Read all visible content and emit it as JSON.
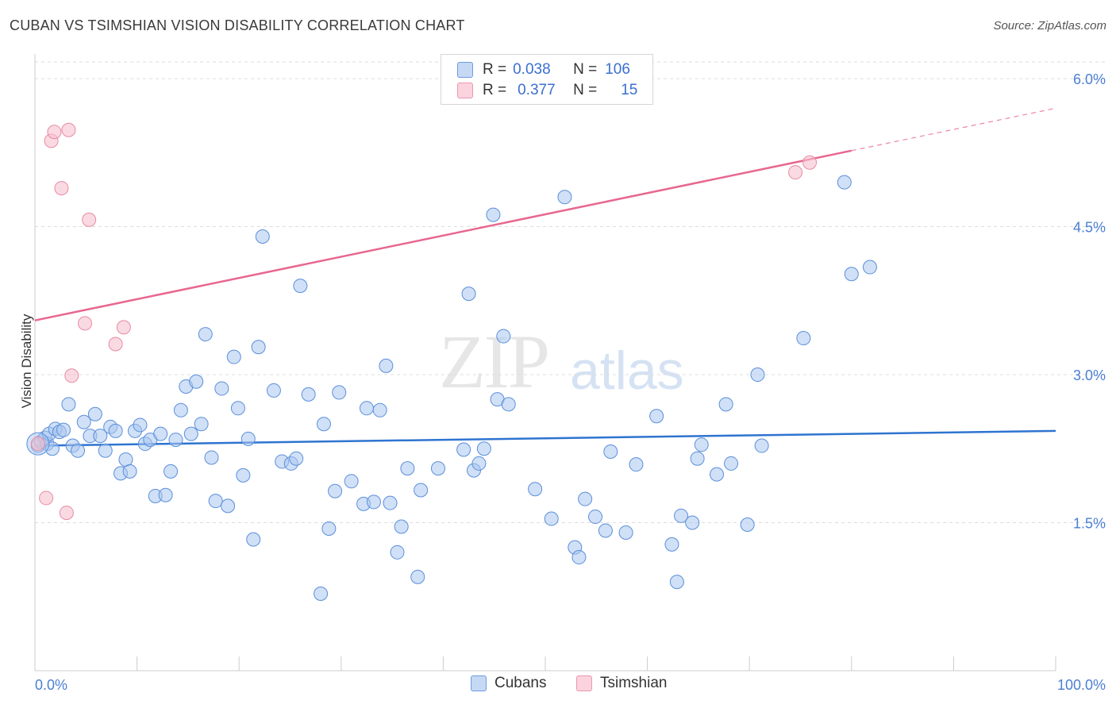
{
  "header": {
    "title": "CUBAN VS TSIMSHIAN VISION DISABILITY CORRELATION CHART",
    "source": "Source: ZipAtlas.com"
  },
  "watermark": {
    "zip": "ZIP",
    "atlas": "atlas"
  },
  "legend": {
    "rows": [
      {
        "r_label": "R =",
        "r_value": "0.038",
        "n_label": "N =",
        "n_value": "106"
      },
      {
        "r_label": "R =",
        "r_value": "0.377",
        "n_label": "N =",
        "n_value": "15"
      }
    ]
  },
  "bottom_legend": {
    "series1": "Cubans",
    "series2": "Tsimshian"
  },
  "colors": {
    "blue_fill": "#a9c6ef",
    "blue_stroke": "#5b8fdb",
    "blue_line": "#2e74d0",
    "pink_fill": "#f6c1cf",
    "pink_stroke": "#e88aa3",
    "pink_line": "#e8678f",
    "tick_text": "#4a7fd4",
    "grid": "#dddddd"
  },
  "chart_data": {
    "type": "scatter",
    "title": "CUBAN VS TSIMSHIAN VISION DISABILITY CORRELATION CHART",
    "xlabel": "",
    "ylabel": "Vision Disability",
    "xlim": [
      0,
      100
    ],
    "ylim": [
      0,
      6.25
    ],
    "x_tick_labels": [
      "0.0%",
      "100.0%"
    ],
    "y_ticks": [
      1.5,
      3.0,
      4.5,
      6.0
    ],
    "y_tick_labels": [
      "1.5%",
      "3.0%",
      "4.5%",
      "6.0%"
    ],
    "grid": "horizontal dashed",
    "legend_placement": "top-center",
    "series": [
      {
        "name": "Cubans",
        "r": 0.038,
        "n": 106,
        "trend": {
          "x": [
            0,
            100
          ],
          "y": [
            2.28,
            2.43
          ]
        },
        "points": [
          [
            0.3,
            2.28
          ],
          [
            0.6,
            2.32
          ],
          [
            1.0,
            2.36
          ],
          [
            1.2,
            2.3
          ],
          [
            1.4,
            2.4
          ],
          [
            1.7,
            2.25
          ],
          [
            2.0,
            2.45
          ],
          [
            2.4,
            2.42
          ],
          [
            2.8,
            2.44
          ],
          [
            3.3,
            2.7
          ],
          [
            3.7,
            2.28
          ],
          [
            4.2,
            2.23
          ],
          [
            4.8,
            2.52
          ],
          [
            5.4,
            2.38
          ],
          [
            5.9,
            2.6
          ],
          [
            6.4,
            2.38
          ],
          [
            6.9,
            2.23
          ],
          [
            7.4,
            2.47
          ],
          [
            7.9,
            2.43
          ],
          [
            8.4,
            2.0
          ],
          [
            8.9,
            2.14
          ],
          [
            9.3,
            2.02
          ],
          [
            9.8,
            2.43
          ],
          [
            10.3,
            2.49
          ],
          [
            10.8,
            2.3
          ],
          [
            11.3,
            2.34
          ],
          [
            11.8,
            1.77
          ],
          [
            12.3,
            2.4
          ],
          [
            12.8,
            1.78
          ],
          [
            13.3,
            2.02
          ],
          [
            13.8,
            2.34
          ],
          [
            14.3,
            2.64
          ],
          [
            14.8,
            2.88
          ],
          [
            15.3,
            2.4
          ],
          [
            15.8,
            2.93
          ],
          [
            16.3,
            2.5
          ],
          [
            16.7,
            3.41
          ],
          [
            17.3,
            2.16
          ],
          [
            17.7,
            1.72
          ],
          [
            18.3,
            2.86
          ],
          [
            18.9,
            1.67
          ],
          [
            19.5,
            3.18
          ],
          [
            19.9,
            2.66
          ],
          [
            20.4,
            1.98
          ],
          [
            20.9,
            2.35
          ],
          [
            21.4,
            1.33
          ],
          [
            21.9,
            3.28
          ],
          [
            22.3,
            4.4
          ],
          [
            23.4,
            2.84
          ],
          [
            24.2,
            2.12
          ],
          [
            25.1,
            2.1
          ],
          [
            25.6,
            2.15
          ],
          [
            26.0,
            3.9
          ],
          [
            26.8,
            2.8
          ],
          [
            28.0,
            0.78
          ],
          [
            28.3,
            2.5
          ],
          [
            28.8,
            1.44
          ],
          [
            29.4,
            1.82
          ],
          [
            29.8,
            2.82
          ],
          [
            31.0,
            1.92
          ],
          [
            32.2,
            1.69
          ],
          [
            32.5,
            2.66
          ],
          [
            33.2,
            1.71
          ],
          [
            33.8,
            2.64
          ],
          [
            34.4,
            3.09
          ],
          [
            34.8,
            1.7
          ],
          [
            35.5,
            1.2
          ],
          [
            35.9,
            1.46
          ],
          [
            36.5,
            2.05
          ],
          [
            37.5,
            0.95
          ],
          [
            37.8,
            1.83
          ],
          [
            39.5,
            2.05
          ],
          [
            42.0,
            2.24
          ],
          [
            42.5,
            3.82
          ],
          [
            43.0,
            2.03
          ],
          [
            43.5,
            2.1
          ],
          [
            44.0,
            2.25
          ],
          [
            44.9,
            4.62
          ],
          [
            45.3,
            2.75
          ],
          [
            45.9,
            3.39
          ],
          [
            46.4,
            2.7
          ],
          [
            49.0,
            1.84
          ],
          [
            50.6,
            1.54
          ],
          [
            51.9,
            4.8
          ],
          [
            52.9,
            1.25
          ],
          [
            53.3,
            1.15
          ],
          [
            53.9,
            1.74
          ],
          [
            54.9,
            1.56
          ],
          [
            55.9,
            1.42
          ],
          [
            56.4,
            2.22
          ],
          [
            57.9,
            1.4
          ],
          [
            58.9,
            2.09
          ],
          [
            60.9,
            2.58
          ],
          [
            62.4,
            1.28
          ],
          [
            62.9,
            0.9
          ],
          [
            63.3,
            1.57
          ],
          [
            64.4,
            1.5
          ],
          [
            64.9,
            2.15
          ],
          [
            65.3,
            2.29
          ],
          [
            66.8,
            1.99
          ],
          [
            67.7,
            2.7
          ],
          [
            68.2,
            2.1
          ],
          [
            69.8,
            1.48
          ],
          [
            70.8,
            3.0
          ],
          [
            71.2,
            2.28
          ],
          [
            75.3,
            3.37
          ],
          [
            79.3,
            4.95
          ],
          [
            80.0,
            4.02
          ],
          [
            81.8,
            4.09
          ]
        ]
      },
      {
        "name": "Tsimshian",
        "r": 0.377,
        "n": 15,
        "trend": {
          "x": [
            0,
            100
          ],
          "y": [
            3.55,
            5.7
          ]
        },
        "trend_solid_until_x": 80,
        "points": [
          [
            0.3,
            2.3
          ],
          [
            1.1,
            1.75
          ],
          [
            1.6,
            5.37
          ],
          [
            1.9,
            5.46
          ],
          [
            2.6,
            4.89
          ],
          [
            3.1,
            1.6
          ],
          [
            3.3,
            5.48
          ],
          [
            3.6,
            2.99
          ],
          [
            4.9,
            3.52
          ],
          [
            5.3,
            4.57
          ],
          [
            7.9,
            3.31
          ],
          [
            8.7,
            3.48
          ],
          [
            74.5,
            5.05
          ],
          [
            75.9,
            5.15
          ]
        ]
      }
    ]
  }
}
